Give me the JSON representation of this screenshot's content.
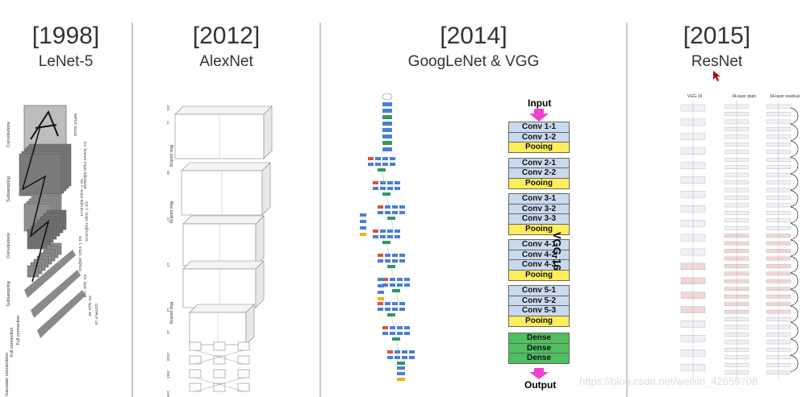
{
  "eras": [
    {
      "year": "[1998]",
      "name": "LeNet-5"
    },
    {
      "year": "[2012]",
      "name": "AlexNet"
    },
    {
      "year": "[2014]",
      "name": "GoogLeNet & VGG"
    },
    {
      "year": "[2015]",
      "name": "ResNet"
    }
  ],
  "lenet": {
    "layer_labels": [
      "Convolutions",
      "Subsampling",
      "Convolutions",
      "Subsampling",
      "Full connection",
      "Full connection",
      "Gaussian connections"
    ],
    "map_labels": [
      "INPUT 32x32",
      "C1: feature maps 6@28x28",
      "S2: f. maps 6@14x14",
      "C3: f. maps 16@10x10",
      "S4: f. maps 16@5x5",
      "C5: layer 120",
      "F6: layer 84",
      "OUTPUT 10"
    ]
  },
  "alexnet": {
    "side_labels": [
      "Max pooling",
      "Max pooling",
      "Max pooling"
    ],
    "numbers": [
      "224",
      "11",
      "55",
      "27",
      "13",
      "13",
      "13",
      "2048",
      "2048",
      "1000"
    ]
  },
  "vgg": {
    "input_label": "Input",
    "output_label": "Output",
    "side_label": "VGG-16",
    "blocks": [
      {
        "type": "conv",
        "label": "Conv 1-1"
      },
      {
        "type": "conv",
        "label": "Conv 1-2"
      },
      {
        "type": "pool",
        "label": "Pooing"
      },
      {
        "type": "conv",
        "label": "Conv 2-1"
      },
      {
        "type": "conv",
        "label": "Conv 2-2"
      },
      {
        "type": "pool",
        "label": "Pooing"
      },
      {
        "type": "conv",
        "label": "Conv 3-1"
      },
      {
        "type": "conv",
        "label": "Conv 3-2"
      },
      {
        "type": "conv",
        "label": "Conv 3-3"
      },
      {
        "type": "pool",
        "label": "Pooing"
      },
      {
        "type": "conv",
        "label": "Conv 4-1"
      },
      {
        "type": "conv",
        "label": "Conv 4-2"
      },
      {
        "type": "conv",
        "label": "Conv 4-3"
      },
      {
        "type": "pool",
        "label": "Pooing"
      },
      {
        "type": "conv",
        "label": "Conv 5-1"
      },
      {
        "type": "conv",
        "label": "Conv 5-2"
      },
      {
        "type": "conv",
        "label": "Conv 5-3"
      },
      {
        "type": "pool",
        "label": "Pooing"
      },
      {
        "type": "dense",
        "label": "Dense"
      },
      {
        "type": "dense",
        "label": "Dense"
      },
      {
        "type": "dense",
        "label": "Dense"
      }
    ]
  },
  "resnet": {
    "column_headers": [
      "VGG-19",
      "34-layer plain",
      "34-layer residual"
    ]
  },
  "watermark": "https://blog.csdn.net/weixin_42659708",
  "colors": {
    "conv": "#c9d9ee",
    "pool": "#ffee5c",
    "dense": "#4fbf5f",
    "arrow": "#ee44cc",
    "googlenet_blue": "#4a7fd6",
    "googlenet_red": "#d9533b",
    "googlenet_green": "#2f9a5a",
    "googlenet_yellow": "#f4b400",
    "resnet_pink": "#f3d6d6"
  }
}
